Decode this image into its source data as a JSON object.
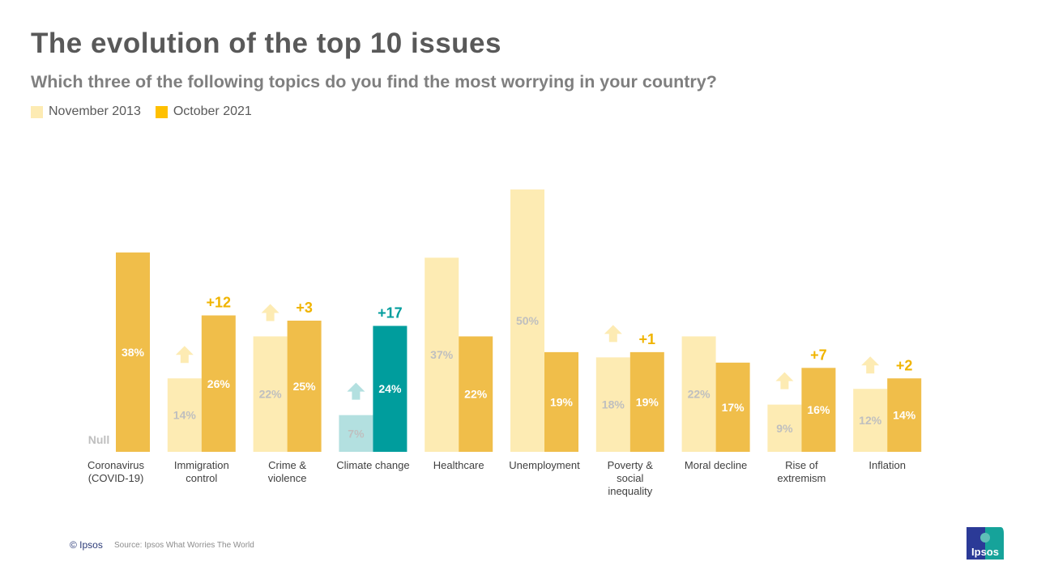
{
  "title": "The evolution of the top 10 issues",
  "subtitle": "Which three of the following topics do you find the most worrying in your country?",
  "legend": [
    {
      "label": "November 2013",
      "color": "#fdebb3"
    },
    {
      "label": "October 2021",
      "color": "#f0be4a"
    }
  ],
  "footer": {
    "copyright": "© Ipsos",
    "source": "Source: Ipsos What Worries The World",
    "logo_text": "Ipsos"
  },
  "colors": {
    "light": "#fdebb3",
    "dark": "#f0be4a",
    "climate_light": "#b3e0e0",
    "climate_dark": "#009d9d",
    "delta": "#f0b400",
    "light_label": "#bfbfbf",
    "dark_label": "#ffffff"
  },
  "chart_data": {
    "type": "bar",
    "categories": [
      "Coronavirus (COVID-19)",
      "Immigration control",
      "Crime & violence",
      "Climate change",
      "Healthcare",
      "Unemployment",
      "Poverty & social inequality",
      "Moral decline",
      "Rise of extremism",
      "Inflation"
    ],
    "category_lines": [
      [
        "Coronavirus",
        "(COVID-19)"
      ],
      [
        "Immigration",
        "control"
      ],
      [
        "Crime &",
        "violence"
      ],
      [
        "Climate change"
      ],
      [
        "Healthcare"
      ],
      [
        "Unemployment"
      ],
      [
        "Poverty &",
        "social",
        "inequality"
      ],
      [
        "Moral decline"
      ],
      [
        "Rise of",
        "extremism"
      ],
      [
        "Inflation"
      ]
    ],
    "series": [
      {
        "name": "November 2013",
        "values": [
          null,
          14,
          22,
          7,
          37,
          50,
          18,
          22,
          9,
          12
        ]
      },
      {
        "name": "October 2021",
        "values": [
          38,
          26,
          25,
          24,
          22,
          19,
          19,
          17,
          16,
          14
        ]
      }
    ],
    "null_label": "Null",
    "deltas": [
      null,
      "+12",
      "+3",
      "+17",
      null,
      null,
      "+1",
      null,
      "+7",
      "+2"
    ],
    "highlight_category": "Climate change",
    "ylim": [
      0,
      50
    ],
    "grid": false,
    "legend_position": "top-left"
  }
}
